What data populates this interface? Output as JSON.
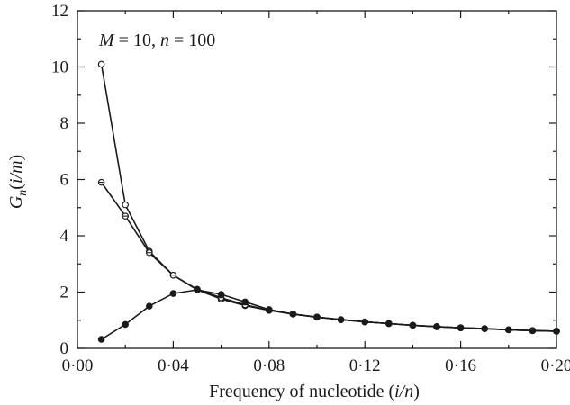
{
  "chart_data": {
    "type": "line",
    "annotation": {
      "M_sym": "M",
      "M_val": " = 10, ",
      "n_sym": "n",
      "n_val": " = 100"
    },
    "xlabel": {
      "text": "Frequency of nucleotide (",
      "italic": "i/n",
      "close": ")"
    },
    "ylabel": {
      "main": "G",
      "sub": "n",
      "open": "(",
      "italic": "i/m",
      "close": ")"
    },
    "xlim": [
      0,
      0.2
    ],
    "ylim": [
      0,
      12
    ],
    "xticks": [
      0,
      0.04,
      0.08,
      0.12,
      0.16,
      0.2
    ],
    "xtick_labels": [
      "0·00",
      "0·04",
      "0·08",
      "0·12",
      "0·16",
      "0·20"
    ],
    "yticks": [
      0,
      2,
      4,
      6,
      8,
      10,
      12
    ],
    "ytick_labels": [
      "0",
      "2",
      "4",
      "6",
      "8",
      "10",
      "12"
    ],
    "grid": false,
    "series": [
      {
        "marker": "open-circle",
        "x": [
          0.01,
          0.02,
          0.03,
          0.04,
          0.05,
          0.06,
          0.07,
          0.08,
          0.09,
          0.1,
          0.11,
          0.12,
          0.13,
          0.14,
          0.15,
          0.16,
          0.17,
          0.18,
          0.19,
          0.2
        ],
        "y": [
          10.1,
          5.1,
          3.45,
          2.6,
          2.08,
          1.75,
          1.52,
          1.35,
          1.22,
          1.11,
          1.02,
          0.94,
          0.88,
          0.82,
          0.77,
          0.73,
          0.7,
          0.66,
          0.63,
          0.61
        ]
      },
      {
        "marker": "crossed-circle",
        "x": [
          0.01,
          0.02,
          0.03,
          0.04,
          0.05,
          0.06,
          0.07,
          0.08,
          0.09,
          0.1,
          0.11,
          0.12,
          0.13,
          0.14,
          0.15,
          0.16,
          0.17,
          0.18,
          0.19,
          0.2
        ],
        "y": [
          5.9,
          4.7,
          3.4,
          2.6,
          2.1,
          1.8,
          1.55,
          1.36,
          1.22,
          1.11,
          1.02,
          0.94,
          0.88,
          0.82,
          0.77,
          0.73,
          0.7,
          0.66,
          0.63,
          0.61
        ]
      },
      {
        "marker": "filled-circle",
        "x": [
          0.01,
          0.02,
          0.03,
          0.04,
          0.05,
          0.06,
          0.07,
          0.08,
          0.09,
          0.1,
          0.11,
          0.12,
          0.13,
          0.14,
          0.15,
          0.16,
          0.17,
          0.18,
          0.19,
          0.2
        ],
        "y": [
          0.32,
          0.85,
          1.5,
          1.95,
          2.08,
          1.92,
          1.65,
          1.38,
          1.22,
          1.11,
          1.02,
          0.94,
          0.88,
          0.82,
          0.77,
          0.73,
          0.7,
          0.66,
          0.63,
          0.61
        ]
      }
    ]
  }
}
